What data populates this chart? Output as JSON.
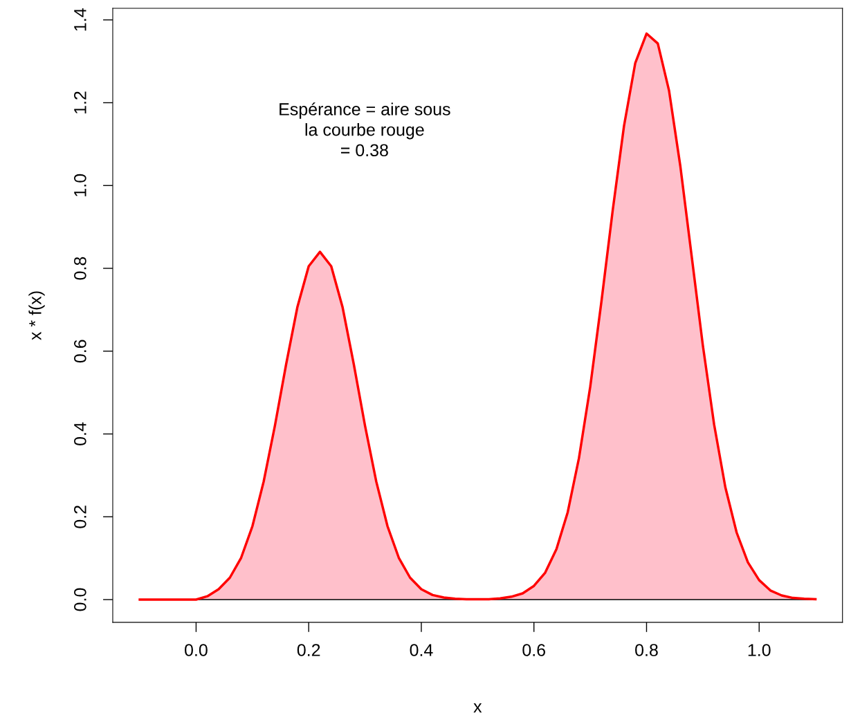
{
  "chart_data": {
    "type": "area",
    "xlabel": "x",
    "ylabel": "x * f(x)",
    "x": [
      -0.1,
      -0.08,
      -0.06,
      -0.04,
      -0.02,
      0.0,
      0.02,
      0.04,
      0.06,
      0.08,
      0.1,
      0.12,
      0.14,
      0.16,
      0.18,
      0.2,
      0.22,
      0.24,
      0.26,
      0.28,
      0.3,
      0.32,
      0.34,
      0.36,
      0.38,
      0.4,
      0.42,
      0.44,
      0.46,
      0.48,
      0.5,
      0.52,
      0.54,
      0.56,
      0.58,
      0.6,
      0.62,
      0.64,
      0.66,
      0.68,
      0.7,
      0.72,
      0.74,
      0.76,
      0.78,
      0.8,
      0.82,
      0.84,
      0.86,
      0.88,
      0.9,
      0.92,
      0.94,
      0.96,
      0.98,
      1.0,
      1.02,
      1.04,
      1.06,
      1.08,
      1.1
    ],
    "series": [
      {
        "color": "#ffc0cb",
        "values": [
          0,
          0,
          0,
          0,
          0,
          0,
          0.008,
          0.025,
          0.053,
          0.101,
          0.177,
          0.285,
          0.42,
          0.569,
          0.707,
          0.805,
          0.84,
          0.805,
          0.707,
          0.569,
          0.42,
          0.285,
          0.177,
          0.101,
          0.053,
          0.025,
          0.011,
          0.005,
          0.002,
          0.001,
          0.001,
          0.001,
          0.003,
          0.007,
          0.015,
          0.033,
          0.065,
          0.122,
          0.211,
          0.342,
          0.514,
          0.721,
          0.941,
          1.144,
          1.296,
          1.367,
          1.343,
          1.229,
          1.047,
          0.831,
          0.614,
          0.423,
          0.271,
          0.162,
          0.09,
          0.047,
          0.022,
          0.01,
          0.004,
          0.002,
          0.001
        ]
      }
    ],
    "xlim": [
      -0.148,
      1.148
    ],
    "ylim": [
      -0.055,
      1.428
    ],
    "xticks": [
      {
        "value": 0,
        "label": "0.0"
      },
      {
        "value": 0.2,
        "label": "0.2"
      },
      {
        "value": 0.4,
        "label": "0.4"
      },
      {
        "value": 0.6,
        "label": "0.6"
      },
      {
        "value": 0.8,
        "label": "0.8"
      },
      {
        "value": 1.0,
        "label": "1.0"
      }
    ],
    "yticks": [
      {
        "value": 0,
        "label": "0.0"
      },
      {
        "value": 0.2,
        "label": "0.2"
      },
      {
        "value": 0.4,
        "label": "0.4"
      },
      {
        "value": 0.6,
        "label": "0.6"
      },
      {
        "value": 0.8,
        "label": "0.8"
      },
      {
        "value": 1.0,
        "label": "1.0"
      },
      {
        "value": 1.2,
        "label": "1.2"
      },
      {
        "value": 1.4,
        "label": "1.4"
      }
    ],
    "annotations": [
      "Espérance = aire sous\nla courbe rouge\n= 0.38"
    ],
    "grid": false,
    "legend": false
  }
}
